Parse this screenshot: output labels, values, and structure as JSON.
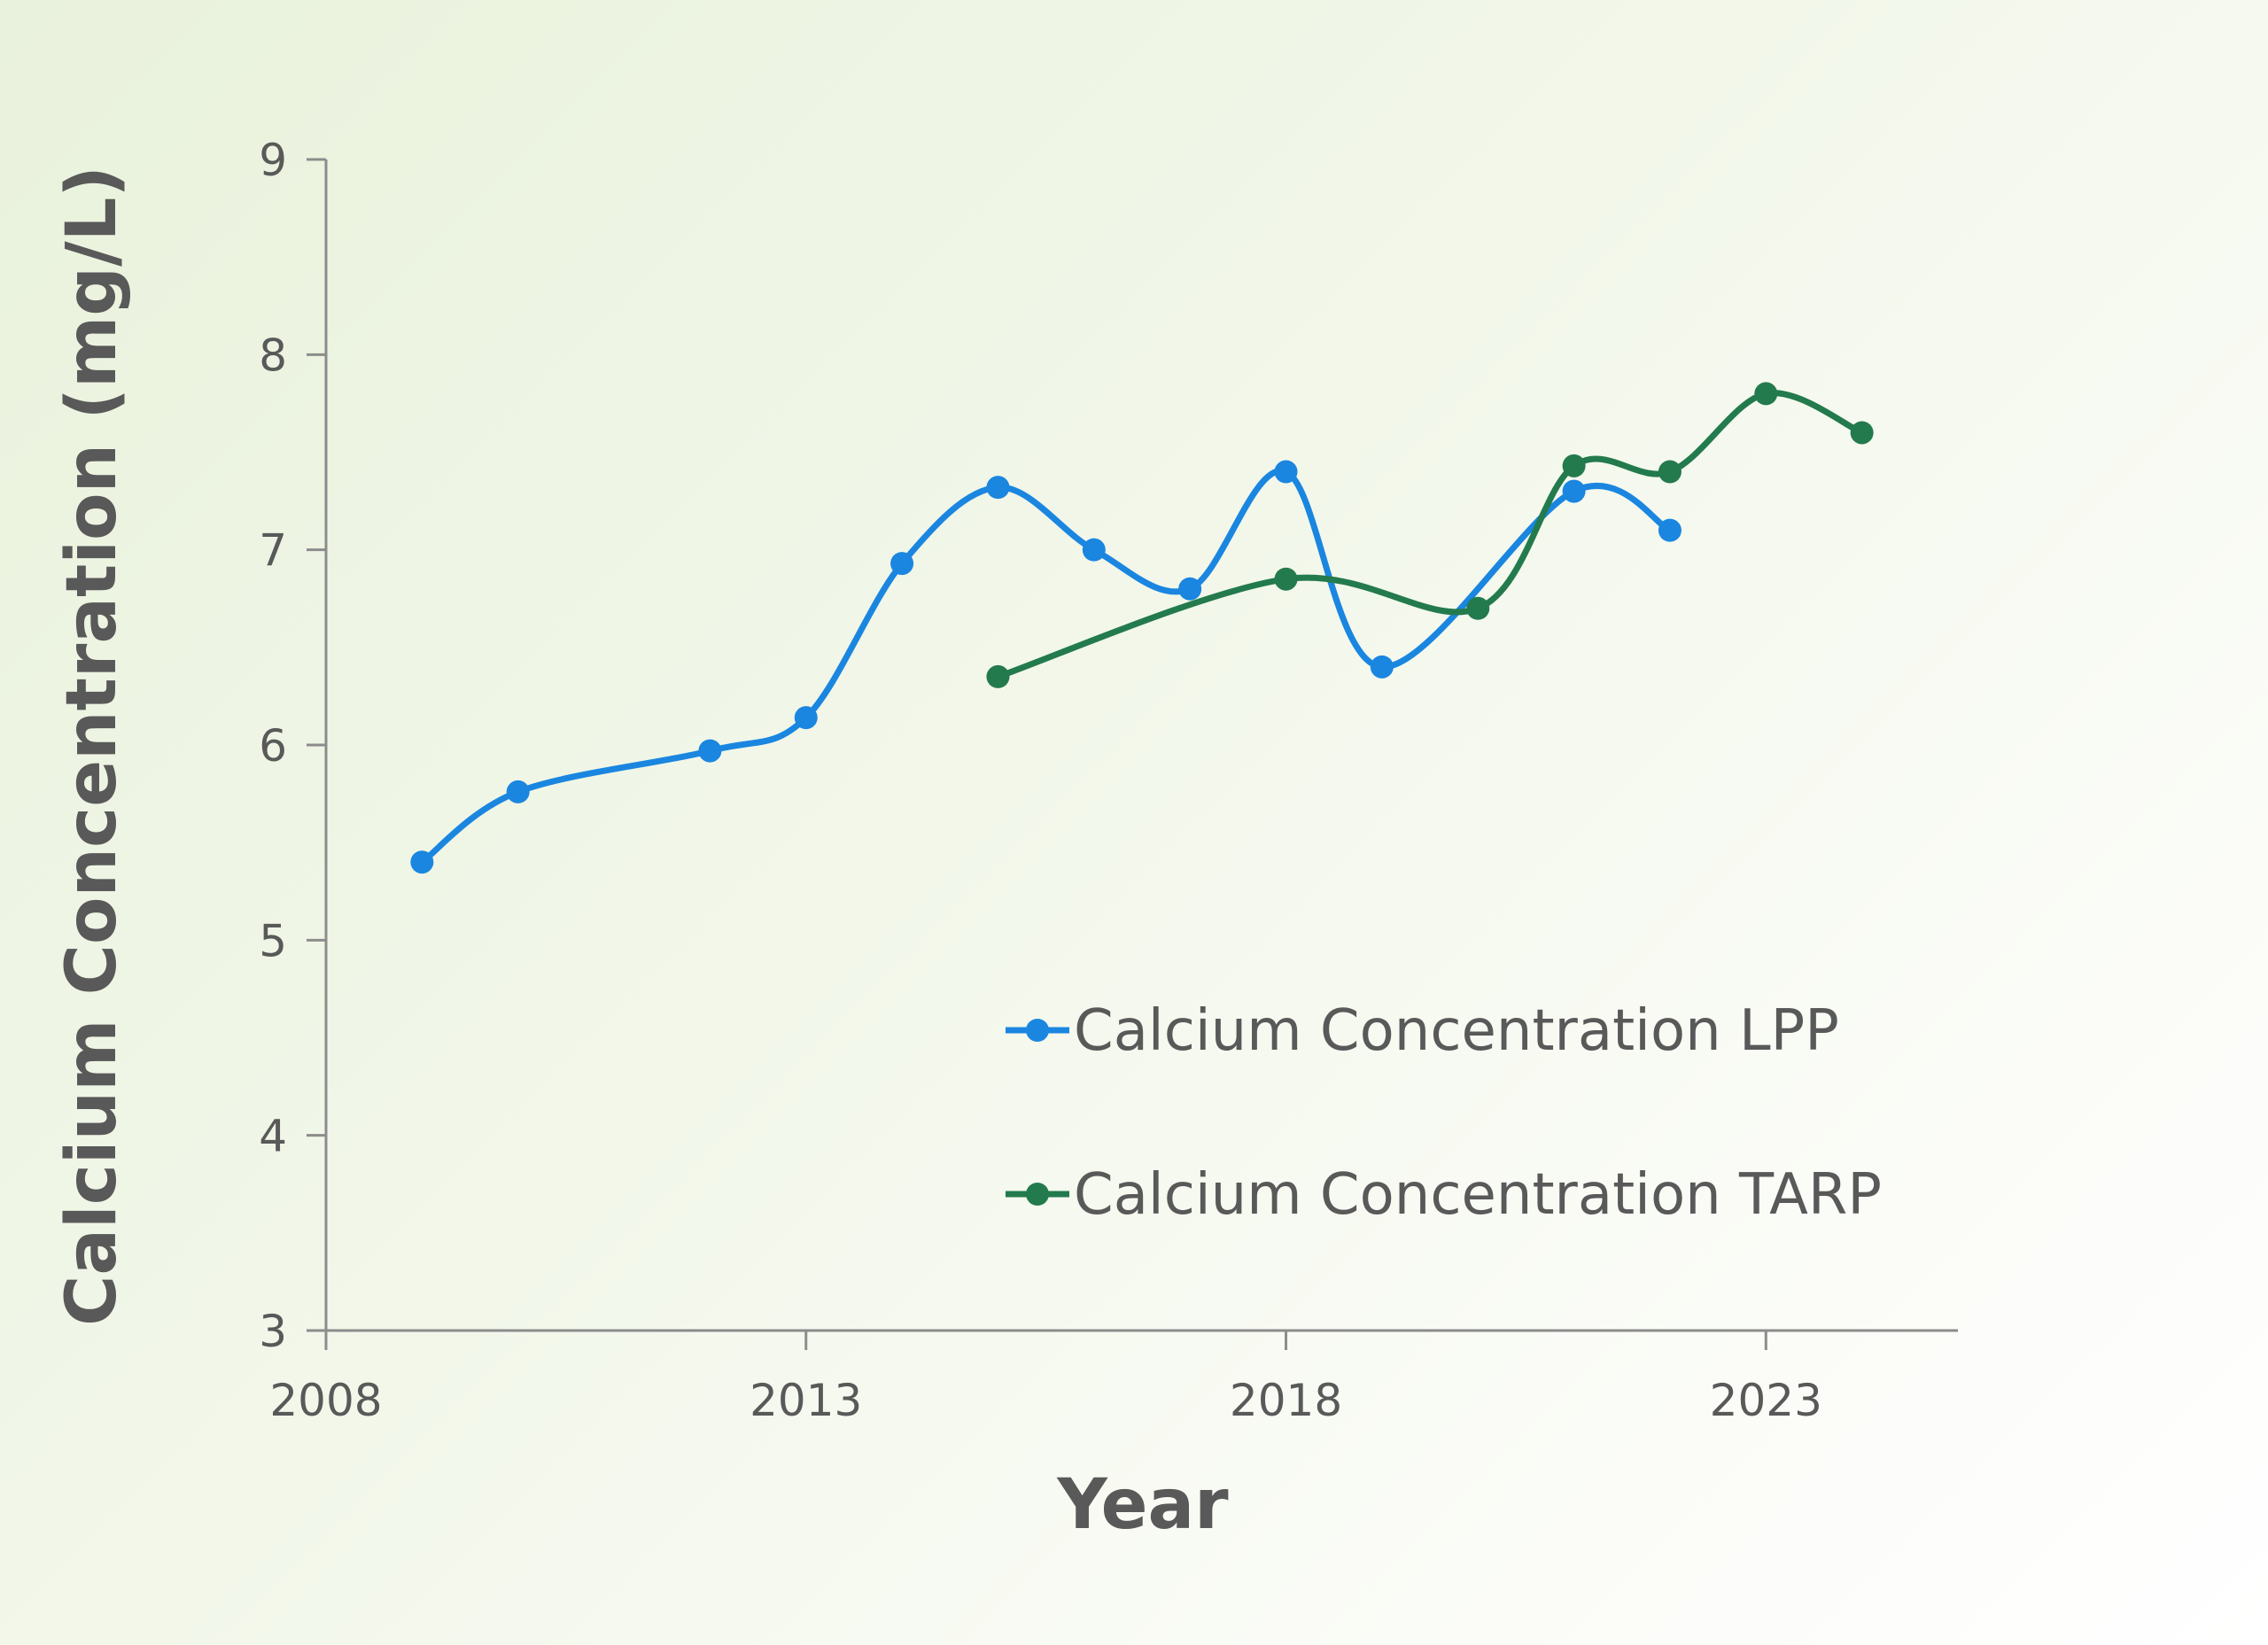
{
  "chart_data": {
    "type": "line",
    "smooth": true,
    "xlabel": "Year",
    "ylabel": "Calcium Concentration (mg/L)",
    "xlim": [
      2008,
      2025
    ],
    "ylim": [
      3,
      9
    ],
    "x_ticks": [
      2008,
      2013,
      2018,
      2023
    ],
    "y_ticks": [
      3,
      4,
      5,
      6,
      7,
      8,
      9
    ],
    "grid": false,
    "legend_position": "bottom-right",
    "series": [
      {
        "name": "Calcium Concentration LPP",
        "color": "#1a86e0",
        "x": [
          2009,
          2010,
          2012,
          2013,
          2014,
          2015,
          2016,
          2017,
          2018,
          2019,
          2021,
          2022
        ],
        "y": [
          5.4,
          5.76,
          5.97,
          6.14,
          6.93,
          7.32,
          7.0,
          6.8,
          7.4,
          6.4,
          7.3,
          7.1
        ]
      },
      {
        "name": "Calcium Concentration TARP",
        "color": "#237a4d",
        "x": [
          2015,
          2018,
          2020,
          2021,
          2022,
          2023,
          2024
        ],
        "y": [
          6.35,
          6.85,
          6.7,
          7.43,
          7.4,
          7.8,
          7.6
        ]
      }
    ]
  }
}
